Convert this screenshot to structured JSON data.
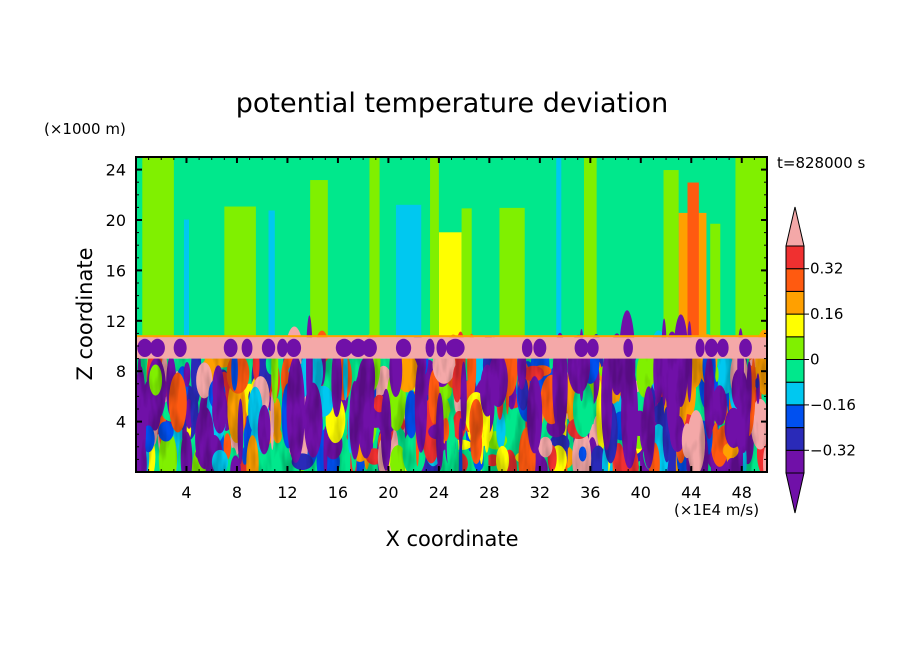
{
  "chart_data": {
    "type": "heatmap",
    "title": "potential temperature deviation",
    "xlabel": "X coordinate",
    "ylabel": "Z coordinate",
    "x_unit": "(×1E4 m/s)",
    "y_unit": "(×1000 m)",
    "time_label": "t=828000 s",
    "xlim": [
      0,
      50
    ],
    "ylim": [
      0,
      25
    ],
    "x_ticks": [
      4,
      8,
      12,
      16,
      20,
      24,
      28,
      32,
      36,
      40,
      44,
      48
    ],
    "y_ticks": [
      4,
      8,
      12,
      16,
      20,
      24
    ],
    "colorbar": {
      "levels": [
        -0.4,
        -0.32,
        -0.24,
        -0.16,
        -0.08,
        0,
        0.08,
        0.16,
        0.24,
        0.32,
        0.4
      ],
      "labels": [
        "0.32",
        "0.16",
        "0",
        "−0.16",
        "−0.32"
      ],
      "label_values": [
        0.32,
        0.16,
        0,
        -0.16,
        -0.32
      ],
      "colors": [
        "#7010a8",
        "#2a2ab8",
        "#0050f0",
        "#00c8f0",
        "#00e88c",
        "#80f000",
        "#ffff00",
        "#ffa000",
        "#ff5a10",
        "#f03030"
      ],
      "extend_low_color": "#7010a8",
      "extend_high_color": "#f4a8a8"
    },
    "regions": {
      "upper_layer": {
        "z_range": [
          10.7,
          25
        ],
        "dominant_values": [
          -0.04,
          0.04
        ],
        "note": "green bands with cyan and yellow streaks, orange/red column near x=43-45"
      },
      "inversion_layer": {
        "z_range": [
          9,
          10.7
        ],
        "dominant_value": 0.45,
        "note": "pink band with purple blobs"
      },
      "lower_layer": {
        "z_range": [
          0,
          9
        ],
        "value_range": [
          -0.45,
          0.45
        ],
        "note": "turbulent mixed field"
      }
    }
  }
}
